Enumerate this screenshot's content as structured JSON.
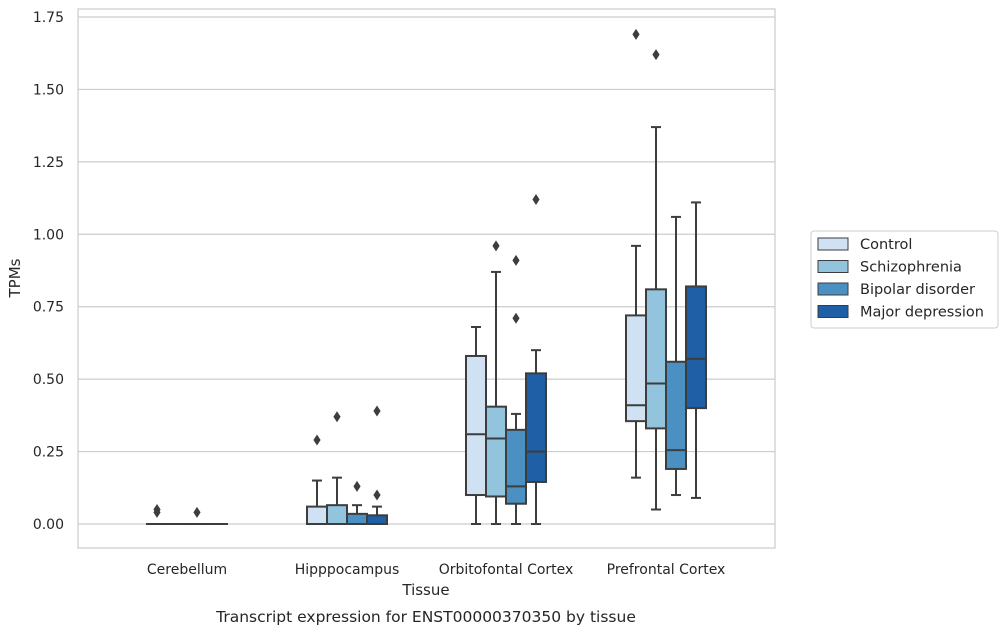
{
  "chart_data": {
    "type": "box",
    "caption": "Transcript expression for ENST00000370350 by tissue",
    "xlabel": "Tissue",
    "ylabel": "TPMs",
    "ylim": [
      -0.08,
      1.77
    ],
    "yticks": [
      0.0,
      0.25,
      0.5,
      0.75,
      1.0,
      1.25,
      1.5,
      1.75
    ],
    "ytick_labels": [
      "0.00",
      "0.25",
      "0.50",
      "0.75",
      "1.00",
      "1.25",
      "1.50",
      "1.75"
    ],
    "grid": true,
    "legend_position": "right",
    "categories": [
      "Cerebellum",
      "Hipppocampus",
      "Orbitofontal Cortex",
      "Prefrontal Cortex"
    ],
    "series": [
      {
        "name": "Control",
        "color": "#cfe1f2",
        "boxes": [
          {
            "min": 0.0,
            "q1": 0.0,
            "median": 0.0,
            "q3": 0.0,
            "max": 0.0,
            "outliers": [
              0.04,
              0.05
            ]
          },
          {
            "min": 0.0,
            "q1": 0.0,
            "median": 0.0,
            "q3": 0.06,
            "max": 0.15,
            "outliers": [
              0.29
            ]
          },
          {
            "min": 0.0,
            "q1": 0.1,
            "median": 0.31,
            "q3": 0.58,
            "max": 0.68,
            "outliers": []
          },
          {
            "min": 0.16,
            "q1": 0.355,
            "median": 0.41,
            "q3": 0.72,
            "max": 0.96,
            "outliers": [
              1.69
            ]
          }
        ]
      },
      {
        "name": "Schizophrenia",
        "color": "#93c4de",
        "boxes": [
          {
            "min": 0.0,
            "q1": 0.0,
            "median": 0.0,
            "q3": 0.0,
            "max": 0.0,
            "outliers": []
          },
          {
            "min": 0.0,
            "q1": 0.0,
            "median": 0.0,
            "q3": 0.065,
            "max": 0.16,
            "outliers": [
              0.37
            ]
          },
          {
            "min": 0.0,
            "q1": 0.095,
            "median": 0.295,
            "q3": 0.405,
            "max": 0.87,
            "outliers": [
              0.96
            ]
          },
          {
            "min": 0.05,
            "q1": 0.33,
            "median": 0.485,
            "q3": 0.81,
            "max": 1.37,
            "outliers": [
              1.62
            ]
          }
        ]
      },
      {
        "name": "Bipolar disorder",
        "color": "#4a90c2",
        "boxes": [
          {
            "min": 0.0,
            "q1": 0.0,
            "median": 0.0,
            "q3": 0.0,
            "max": 0.0,
            "outliers": [
              0.04
            ]
          },
          {
            "min": 0.0,
            "q1": 0.0,
            "median": 0.0,
            "q3": 0.035,
            "max": 0.065,
            "outliers": [
              0.13
            ]
          },
          {
            "min": 0.0,
            "q1": 0.07,
            "median": 0.13,
            "q3": 0.325,
            "max": 0.38,
            "outliers": [
              0.71,
              0.91
            ]
          },
          {
            "min": 0.1,
            "q1": 0.19,
            "median": 0.255,
            "q3": 0.56,
            "max": 1.06,
            "outliers": []
          }
        ]
      },
      {
        "name": "Major depression",
        "color": "#1f5fa6",
        "boxes": [
          {
            "min": 0.0,
            "q1": 0.0,
            "median": 0.0,
            "q3": 0.0,
            "max": 0.0,
            "outliers": []
          },
          {
            "min": 0.0,
            "q1": 0.0,
            "median": 0.0,
            "q3": 0.03,
            "max": 0.06,
            "outliers": [
              0.1,
              0.39
            ]
          },
          {
            "min": 0.0,
            "q1": 0.145,
            "median": 0.25,
            "q3": 0.52,
            "max": 0.6,
            "outliers": [
              1.12
            ]
          },
          {
            "min": 0.09,
            "q1": 0.4,
            "median": 0.57,
            "q3": 0.82,
            "max": 1.11,
            "outliers": []
          }
        ]
      }
    ]
  }
}
